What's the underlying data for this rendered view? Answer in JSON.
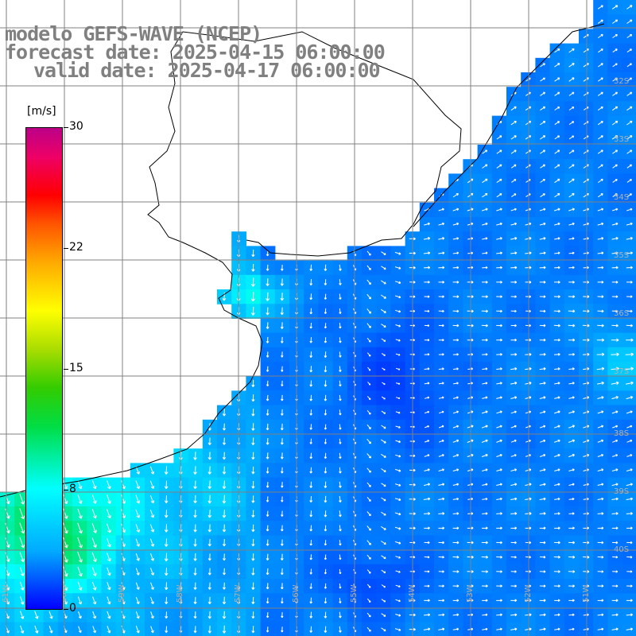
{
  "header": {
    "model": "modelo GEFS-WAVE (NCEP)",
    "forecast": "forecast date: 2025-04-15 06:00:00",
    "valid": "valid date: 2025-04-17 06:00:00"
  },
  "colorbar": {
    "unit": "[m/s]",
    "labels": [
      "30",
      "22",
      "15",
      "8",
      "0"
    ],
    "colors": [
      "#0000ff",
      "#00aaff",
      "#00ffff",
      "#00dd44",
      "#ffff00",
      "#ff0000",
      "#bb0088"
    ]
  },
  "axes": {
    "lon_labels": [
      "61W",
      "60W",
      "59W",
      "58W",
      "57W",
      "56W",
      "55W",
      "54W",
      "53W",
      "52W",
      "51W"
    ],
    "lat_labels": [
      "32S",
      "33S",
      "34S",
      "35S",
      "36S",
      "37S",
      "38S",
      "39S",
      "40S"
    ]
  },
  "colors": {
    "land": "#ffffff",
    "coast": "#000000",
    "grid": "#808080",
    "arrow": "#ffffff"
  }
}
